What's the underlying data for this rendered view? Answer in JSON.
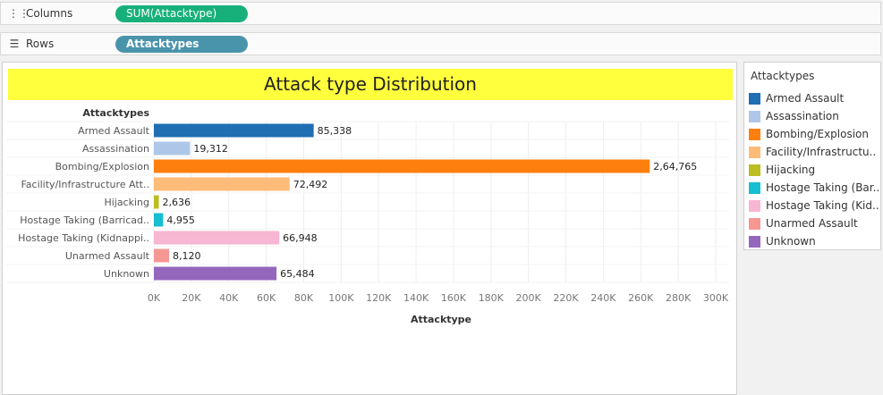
{
  "shelves": {
    "columns": {
      "label": "Columns",
      "icon": "columns-icon",
      "pill": "SUM(Attacktype)",
      "pill_color": "#17b07b"
    },
    "rows": {
      "label": "Rows",
      "icon": "rows-icon",
      "pill": "Attacktypes",
      "pill_color": "#4a94ab"
    }
  },
  "legend": {
    "title": "Attacktypes",
    "items": [
      {
        "label": "Armed Assault",
        "color": "#1f6fb2"
      },
      {
        "label": "Assassination",
        "color": "#aec7e8"
      },
      {
        "label": "Bombing/Explosion",
        "color": "#ff7f0e"
      },
      {
        "label": "Facility/Infrastructu..",
        "color": "#ffbb78"
      },
      {
        "label": "Hijacking",
        "color": "#bcbd22"
      },
      {
        "label": "Hostage Taking (Bar..",
        "color": "#17becf"
      },
      {
        "label": "Hostage Taking (Kid..",
        "color": "#f7b6d2"
      },
      {
        "label": "Unarmed Assault",
        "color": "#f59793"
      },
      {
        "label": "Unknown",
        "color": "#9467bd"
      }
    ]
  },
  "chart_data": {
    "type": "bar",
    "orientation": "horizontal",
    "title": "Attack type Distribution",
    "row_header": "Attacktypes",
    "xlabel": "Attacktype",
    "categories": [
      "Armed Assault",
      "Assassination",
      "Bombing/Explosion",
      "Facility/Infrastructure Att..",
      "Hijacking",
      "Hostage Taking (Barricad..",
      "Hostage Taking (Kidnappi..",
      "Unarmed Assault",
      "Unknown"
    ],
    "values": [
      85338,
      19312,
      264765,
      72492,
      2636,
      4955,
      66948,
      8120,
      65484
    ],
    "value_labels": [
      "85,338",
      "19,312",
      "2,64,765",
      "72,492",
      "2,636",
      "4,955",
      "66,948",
      "8,120",
      "65,484"
    ],
    "colors": [
      "#1f6fb2",
      "#aec7e8",
      "#ff7f0e",
      "#ffbb78",
      "#bcbd22",
      "#17becf",
      "#f7b6d2",
      "#f59793",
      "#9467bd"
    ],
    "xlim": [
      0,
      300000
    ],
    "xticks": [
      0,
      20000,
      40000,
      60000,
      80000,
      100000,
      120000,
      140000,
      160000,
      180000,
      200000,
      220000,
      240000,
      260000,
      280000,
      300000
    ],
    "xtick_labels": [
      "0K",
      "20K",
      "40K",
      "60K",
      "80K",
      "100K",
      "120K",
      "140K",
      "160K",
      "180K",
      "200K",
      "220K",
      "240K",
      "260K",
      "280K",
      "300K"
    ],
    "grid": true,
    "legend_position": "right"
  }
}
